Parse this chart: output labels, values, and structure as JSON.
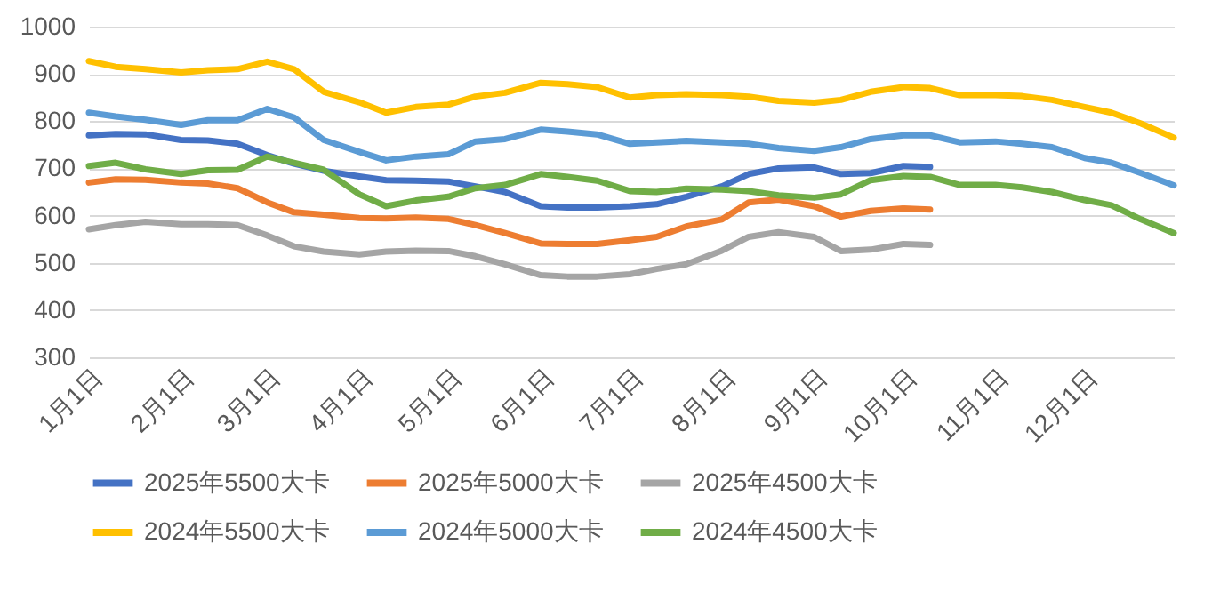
{
  "chart_data": {
    "type": "line",
    "x": [
      "--01-01",
      "--01-10",
      "--01-20",
      "--02-01",
      "--02-10",
      "--02-20",
      "--03-01",
      "--03-10",
      "--03-20",
      "--04-01",
      "--04-10",
      "--04-20",
      "--05-01",
      "--05-10",
      "--05-20",
      "--06-01",
      "--06-10",
      "--06-20",
      "--07-01",
      "--07-10",
      "--07-20",
      "--08-01",
      "--08-10",
      "--08-20",
      "--09-01",
      "--09-10",
      "--09-20",
      "--10-01",
      "--10-10",
      "--10-20",
      "--11-01",
      "--11-10",
      "--11-20",
      "--12-01",
      "--12-10",
      "--12-20",
      "--12-31"
    ],
    "series": [
      {
        "name": "2025年5500大卡",
        "color": "#4472c4",
        "values": [
          770,
          773,
          772,
          760,
          759,
          752,
          728,
          710,
          695,
          683,
          675,
          674,
          672,
          662,
          650,
          620,
          617,
          617,
          620,
          624,
          640,
          662,
          688,
          700,
          702,
          688,
          690,
          705,
          703,
          null,
          null,
          null,
          null,
          null,
          null,
          null,
          null
        ]
      },
      {
        "name": "2025年5000大卡",
        "color": "#ed7d31",
        "values": [
          670,
          677,
          676,
          670,
          668,
          658,
          628,
          607,
          602,
          595,
          594,
          596,
          593,
          580,
          563,
          541,
          540,
          540,
          548,
          555,
          577,
          592,
          628,
          634,
          620,
          598,
          610,
          615,
          613,
          null,
          null,
          null,
          null,
          null,
          null,
          null,
          null
        ]
      },
      {
        "name": "2025年4500大卡",
        "color": "#a5a5a5",
        "values": [
          571,
          580,
          587,
          582,
          582,
          580,
          558,
          535,
          524,
          518,
          524,
          526,
          525,
          514,
          497,
          474,
          471,
          471,
          476,
          487,
          497,
          526,
          555,
          565,
          555,
          525,
          528,
          540,
          538,
          null,
          null,
          null,
          null,
          null,
          null,
          null,
          null
        ]
      },
      {
        "name": "2024年5500大卡",
        "color": "#ffc000",
        "values": [
          927,
          915,
          910,
          903,
          908,
          910,
          926,
          910,
          862,
          840,
          818,
          830,
          835,
          852,
          860,
          881,
          878,
          872,
          850,
          855,
          857,
          855,
          852,
          843,
          839,
          845,
          862,
          872,
          870,
          855,
          855,
          853,
          845,
          830,
          818,
          795,
          765
        ]
      },
      {
        "name": "2024年5000大卡",
        "color": "#5b9bd5",
        "values": [
          818,
          810,
          803,
          792,
          802,
          802,
          826,
          808,
          760,
          735,
          717,
          725,
          730,
          757,
          762,
          782,
          778,
          772,
          752,
          755,
          758,
          755,
          752,
          743,
          737,
          745,
          762,
          770,
          770,
          755,
          757,
          752,
          745,
          722,
          712,
          690,
          664
        ]
      },
      {
        "name": "2024年4500大卡",
        "color": "#70ad47",
        "values": [
          705,
          712,
          698,
          688,
          696,
          697,
          725,
          712,
          697,
          645,
          620,
          632,
          640,
          658,
          665,
          688,
          682,
          674,
          652,
          650,
          657,
          655,
          652,
          643,
          638,
          645,
          675,
          684,
          682,
          665,
          665,
          660,
          650,
          633,
          622,
          592,
          563
        ]
      }
    ],
    "xlim": [
      "--01-01",
      "--12-31"
    ],
    "xticks": [
      {
        "value": "--01-01",
        "label": "1月1日"
      },
      {
        "value": "--02-01",
        "label": "2月1日"
      },
      {
        "value": "--03-01",
        "label": "3月1日"
      },
      {
        "value": "--04-01",
        "label": "4月1日"
      },
      {
        "value": "--05-01",
        "label": "5月1日"
      },
      {
        "value": "--06-01",
        "label": "6月1日"
      },
      {
        "value": "--07-01",
        "label": "7月1日"
      },
      {
        "value": "--08-01",
        "label": "8月1日"
      },
      {
        "value": "--09-01",
        "label": "9月1日"
      },
      {
        "value": "--10-01",
        "label": "10月1日"
      },
      {
        "value": "--11-01",
        "label": "11月1日"
      },
      {
        "value": "--12-01",
        "label": "12月1日"
      }
    ],
    "ylim": [
      300,
      1000
    ],
    "yticks": [
      300,
      400,
      500,
      600,
      700,
      800,
      900,
      1000
    ],
    "grid": "y",
    "legend": "bottom",
    "line_style": "solid"
  }
}
